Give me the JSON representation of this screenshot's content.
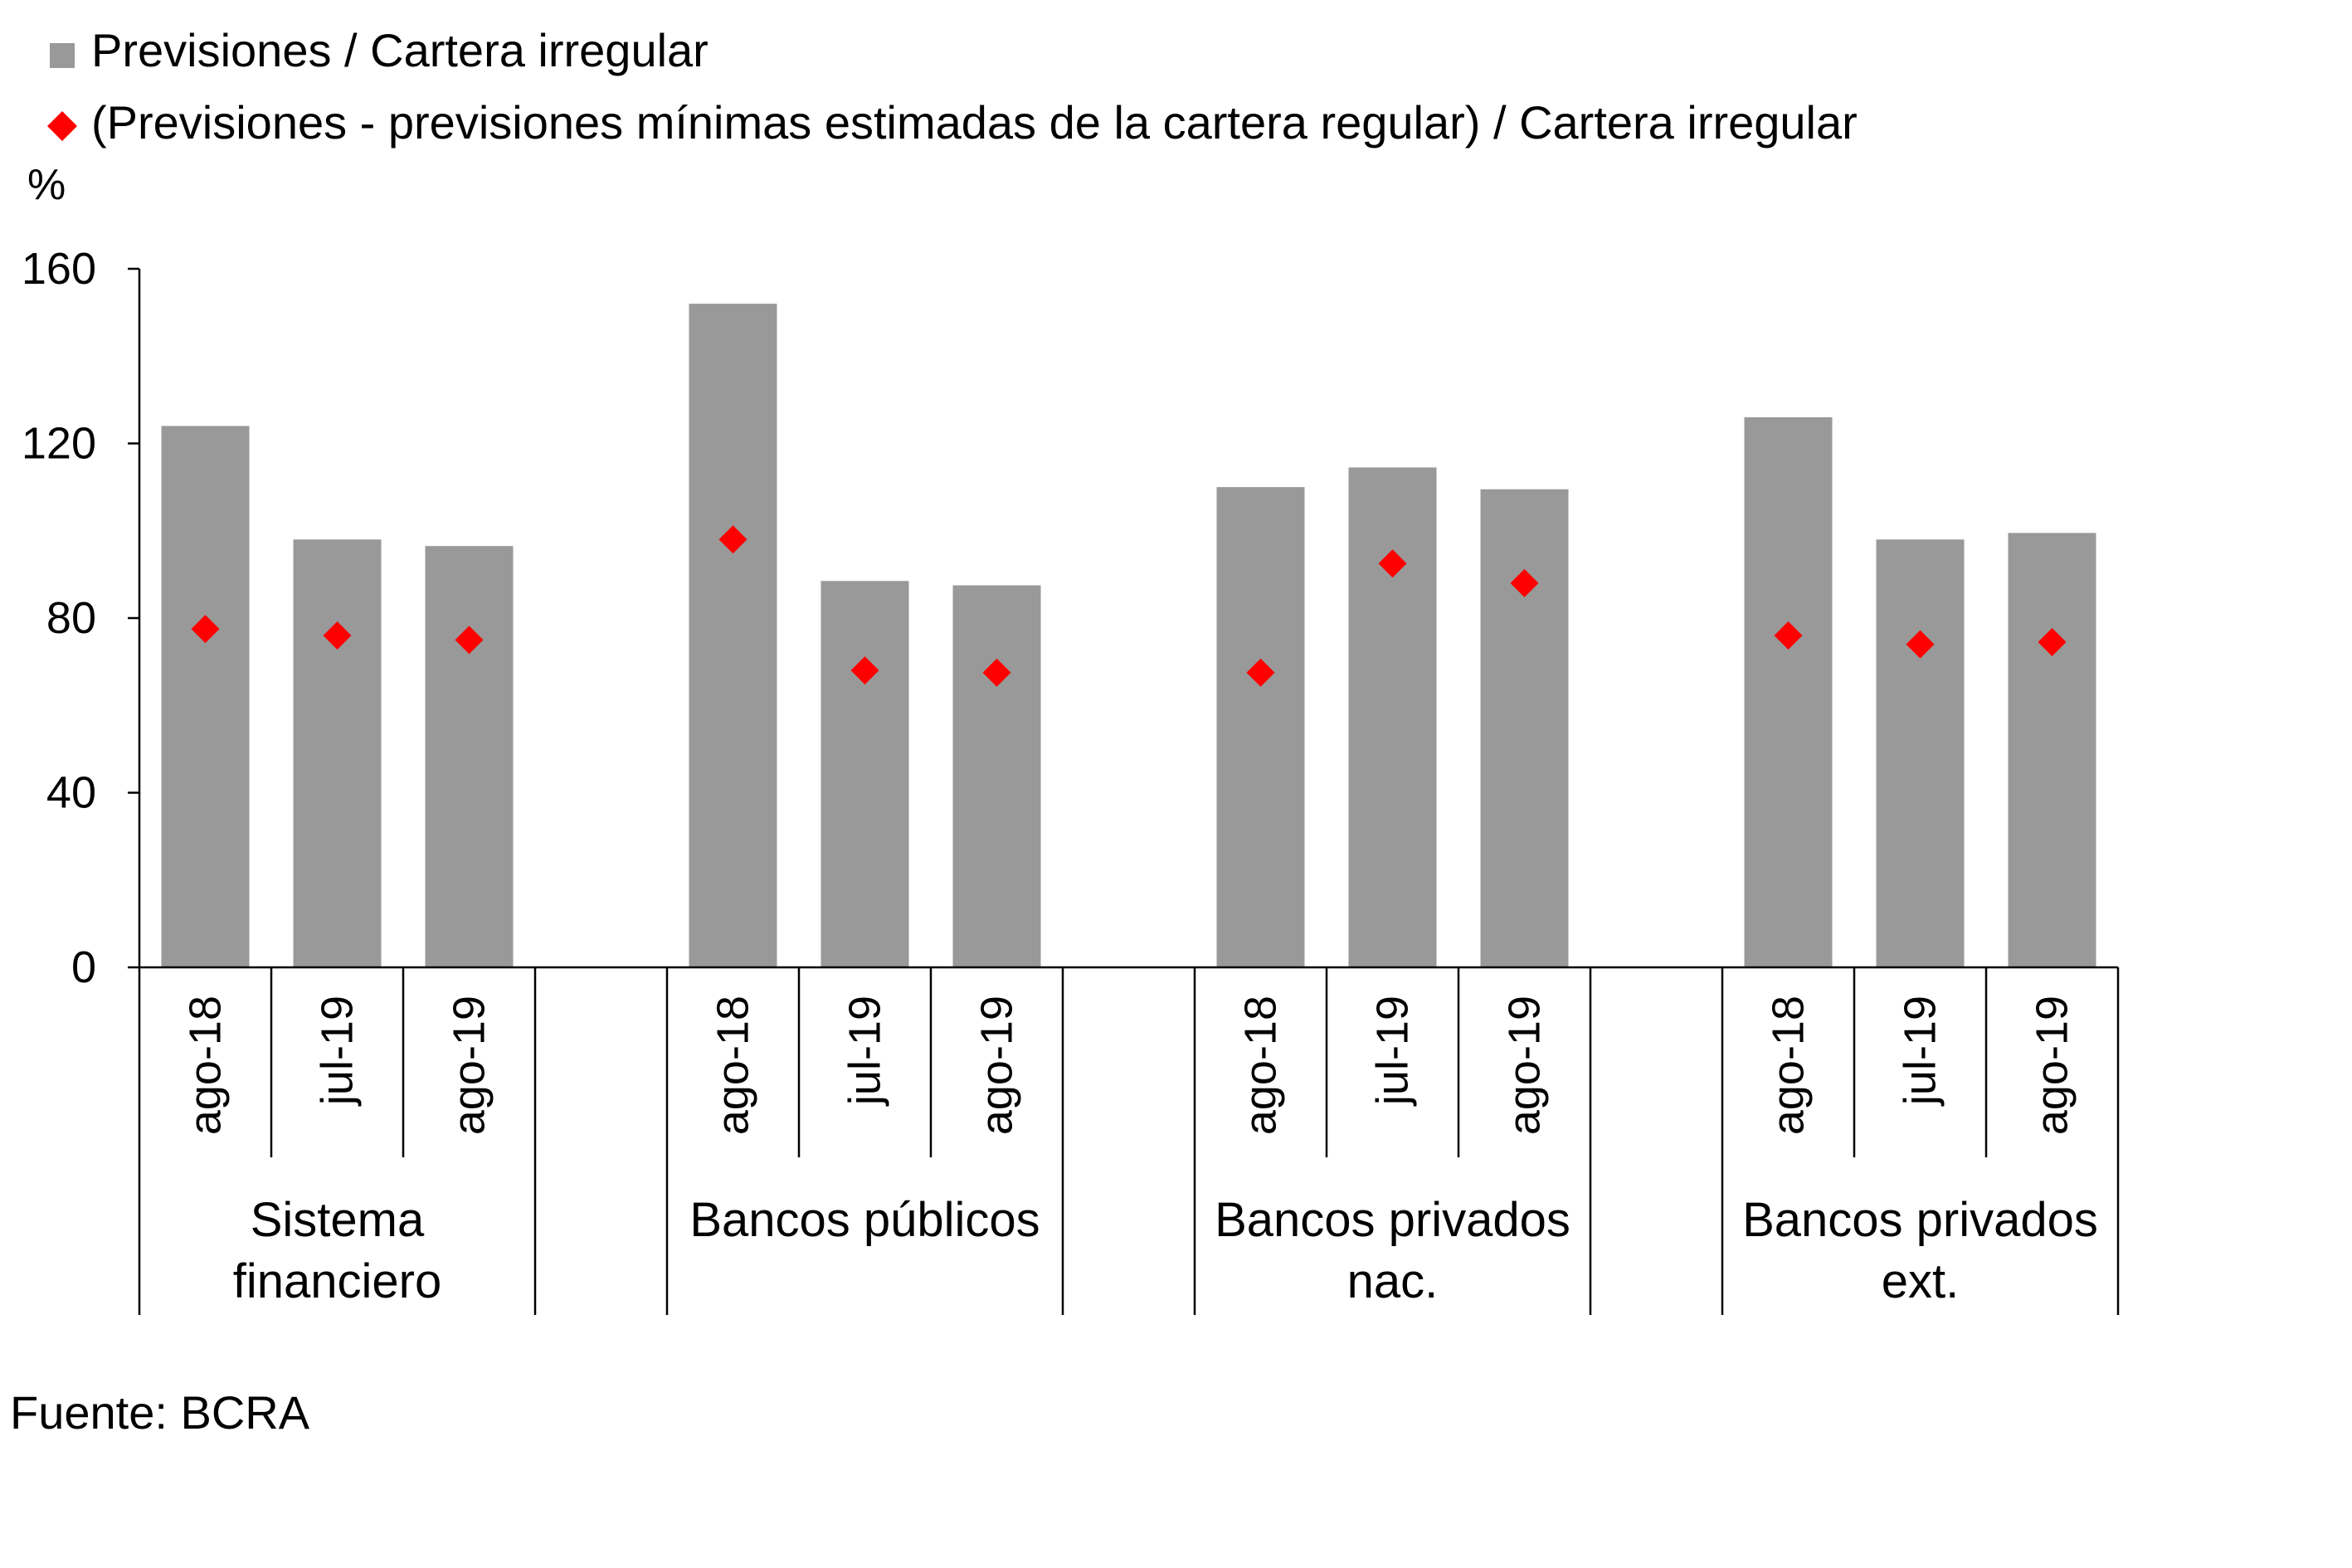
{
  "chart_data": {
    "type": "bar",
    "ylabel": "%",
    "ylim": [
      0,
      160
    ],
    "yticks": [
      0,
      40,
      80,
      120,
      160
    ],
    "grid": false,
    "legend_position": "top-left",
    "colors": {
      "bars": "#999999",
      "markers": "#ff0000",
      "axis": "#000000"
    },
    "groups": [
      {
        "label": "Sistema\nfinanciero",
        "categories": [
          "ago-18",
          "jul-19",
          "ago-19"
        ]
      },
      {
        "label": "Bancos públicos",
        "categories": [
          "ago-18",
          "jul-19",
          "ago-19"
        ]
      },
      {
        "label": "Bancos privados\nnac.",
        "categories": [
          "ago-18",
          "jul-19",
          "ago-19"
        ]
      },
      {
        "label": "Bancos privados\next.",
        "categories": [
          "ago-18",
          "jul-19",
          "ago-19"
        ]
      }
    ],
    "series": [
      {
        "name": "Previsiones / Cartera irregular",
        "kind": "bar",
        "values": [
          124,
          98,
          96.5,
          152,
          88.5,
          87.5,
          110,
          114.5,
          109.5,
          126,
          98,
          99.5
        ]
      },
      {
        "name": "(Previsiones - previsiones mínimas estimadas de la cartera regular) / Cartera irregular",
        "kind": "marker",
        "values": [
          77.5,
          76,
          75,
          98,
          68,
          67.5,
          67.5,
          92.5,
          88,
          76,
          74,
          74.5
        ]
      }
    ]
  },
  "footer": {
    "source": "Fuente: BCRA"
  }
}
